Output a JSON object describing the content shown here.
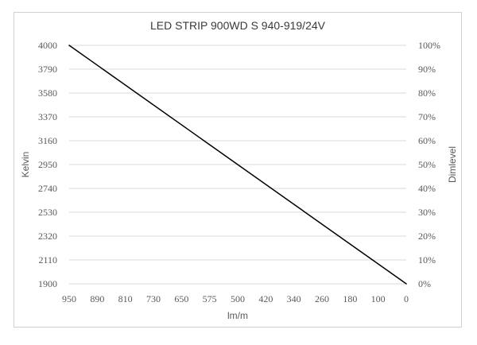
{
  "chart_data": {
    "type": "line",
    "title": "LED STRIP 900WD S 940-919/24V",
    "xlabel": "lm/m",
    "ylabel": "Kelvin",
    "y2label": "Dimlevel",
    "x_ticks": [
      "950",
      "890",
      "810",
      "730",
      "650",
      "575",
      "500",
      "420",
      "340",
      "260",
      "180",
      "100",
      "0"
    ],
    "y_ticks": [
      "4000",
      "3790",
      "3580",
      "3370",
      "3160",
      "2950",
      "2740",
      "2530",
      "2320",
      "2110",
      "1900"
    ],
    "y2_ticks": [
      "100%",
      "90%",
      "80%",
      "70%",
      "60%",
      "50%",
      "40%",
      "30%",
      "20%",
      "10%",
      "0%"
    ],
    "ylim": [
      1900,
      4000
    ],
    "y2lim": [
      0,
      100
    ],
    "grid": true,
    "series": [
      {
        "x": [
          "950",
          "0"
        ],
        "values": [
          4000,
          1900
        ],
        "color": "#000000"
      }
    ]
  }
}
